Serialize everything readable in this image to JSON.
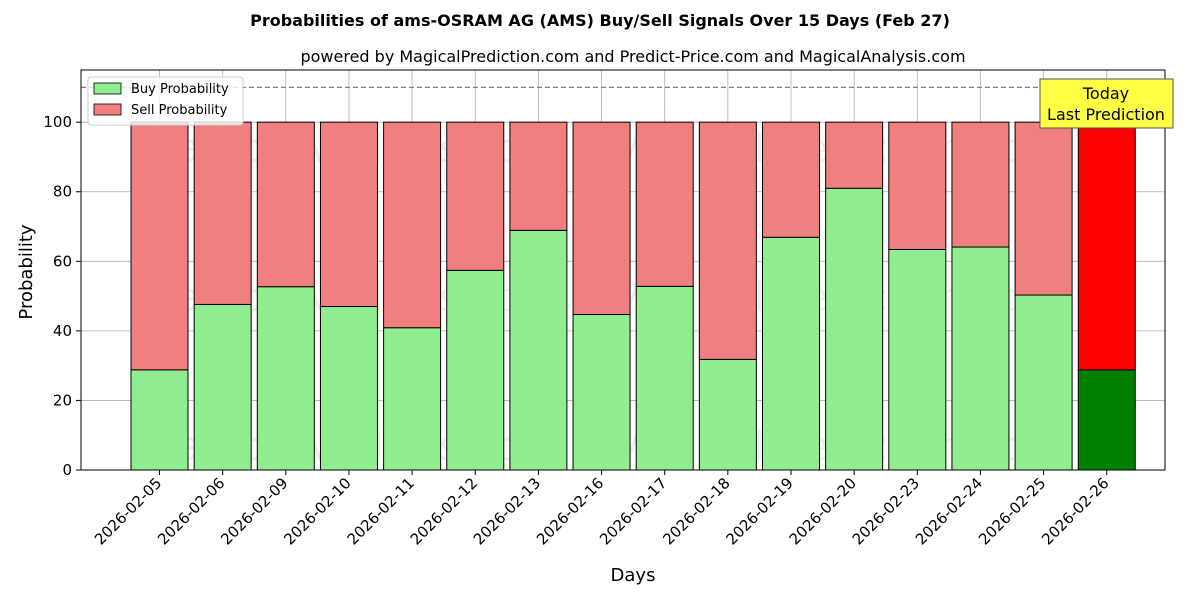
{
  "chart_data": {
    "type": "bar",
    "stacked": true,
    "title": "Probabilities of ams-OSRAM AG (AMS) Buy/Sell Signals Over 15 Days (Feb 27)",
    "subtitle": "powered by MagicalPrediction.com and Predict-Price.com and MagicalAnalysis.com",
    "xlabel": "Days",
    "ylabel": "Probability",
    "ylim": [
      0,
      115
    ],
    "yticks": [
      0,
      20,
      40,
      60,
      80,
      100
    ],
    "grid": true,
    "legend_position": "top-left",
    "reference_line": 110,
    "categories": [
      "2026-02-05",
      "2026-02-06",
      "2026-02-09",
      "2026-02-10",
      "2026-02-11",
      "2026-02-12",
      "2026-02-13",
      "2026-02-16",
      "2026-02-17",
      "2026-02-18",
      "2026-02-19",
      "2026-02-20",
      "2026-02-23",
      "2026-02-24",
      "2026-02-25",
      "2026-02-26"
    ],
    "series": [
      {
        "name": "Buy Probability",
        "color": "#90ee90",
        "values": [
          28.8,
          47.6,
          52.7,
          47.0,
          40.9,
          57.4,
          68.9,
          44.7,
          52.8,
          31.8,
          66.9,
          81.0,
          63.4,
          64.1,
          50.3,
          28.8
        ]
      },
      {
        "name": "Sell Probability",
        "color": "#f08080",
        "values": [
          71.2,
          52.4,
          47.3,
          53.0,
          59.1,
          42.6,
          31.1,
          55.3,
          47.2,
          68.2,
          33.1,
          19.0,
          36.6,
          35.9,
          49.7,
          71.2
        ]
      }
    ],
    "highlight": {
      "index": 15,
      "buy_color": "#008000",
      "sell_color": "#ff0000"
    },
    "annotation": {
      "text_line1": "Today",
      "text_line2": "Last Prediction",
      "background": "#ffff44"
    },
    "watermarks": [
      "MagicalAnalysis.com",
      "MagicalPrediction.com"
    ]
  }
}
